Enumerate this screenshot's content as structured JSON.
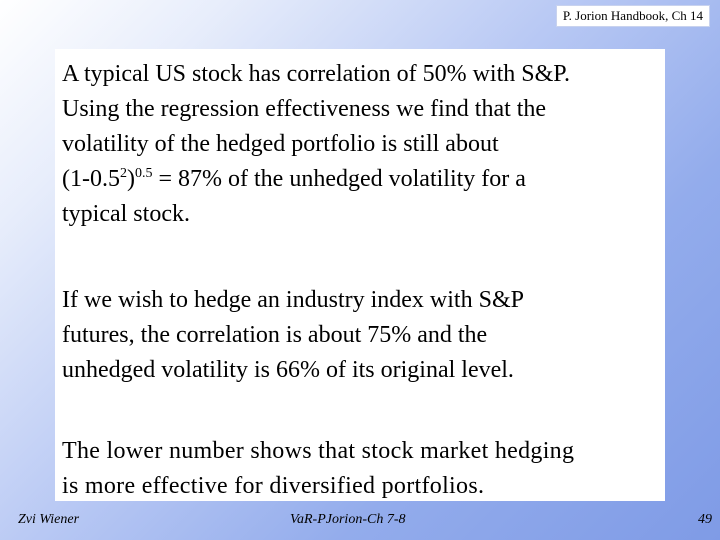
{
  "header": {
    "reference": "P. Jorion Handbook, Ch 14"
  },
  "body": {
    "line1": "A typical US stock has correlation of 50% with S&P.",
    "line2": "Using the regression effectiveness we find that the",
    "line3": "volatility of the hedged portfolio is still about",
    "formula_base": "(1-0.5",
    "formula_exp_inner": "2",
    "formula_close": ")",
    "formula_exp_outer": "0.5",
    "formula_rest": " = 87% of the unhedged volatility for a",
    "line5": "typical stock.",
    "para2_line1": "If we wish to hedge an industry index with S&P",
    "para2_line2": "futures, the correlation is about 75% and the",
    "para2_line3": "unhedged volatility is 66% of its original level.",
    "para3_line1": "The lower number shows that stock market hedging",
    "para3_line2": "is more effective for diversified portfolios."
  },
  "footer": {
    "author": "Zvi Wiener",
    "title": "VaR-PJorion-Ch 7-8",
    "page_number": "49"
  }
}
